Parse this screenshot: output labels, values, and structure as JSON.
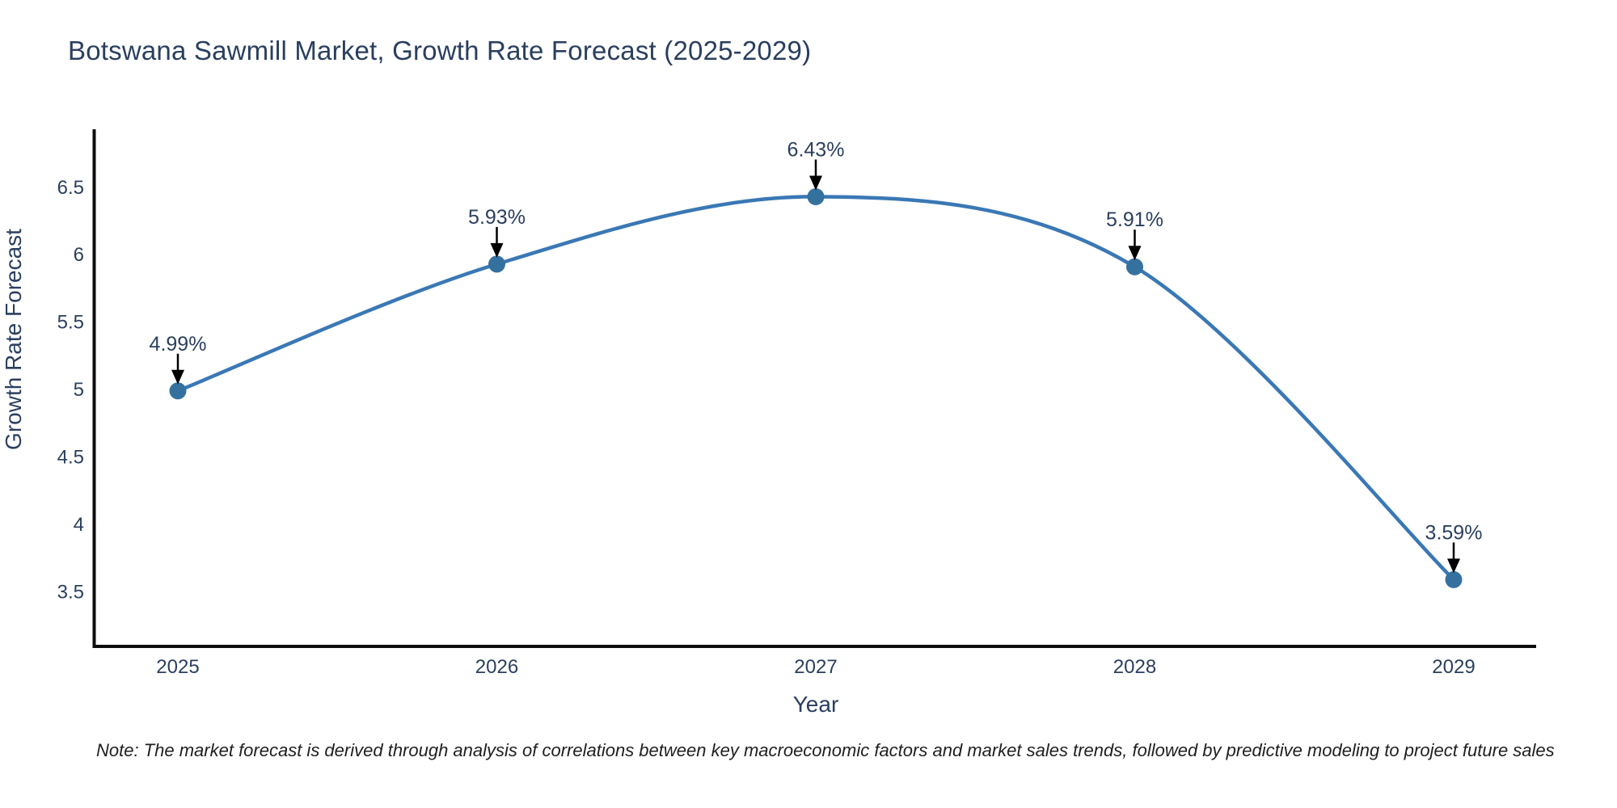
{
  "header": {
    "title": "Botswana Sawmill Market, Growth Rate Forecast (2025-2029)"
  },
  "footnote": {
    "text": "Note: The market forecast is derived through analysis of correlations between key macroeconomic factors and market sales trends, followed by predictive modeling to project future sales"
  },
  "chart_data": {
    "type": "line",
    "title": "Botswana Sawmill Market, Growth Rate Forecast (2025-2029)",
    "categories": [
      "2025",
      "2026",
      "2027",
      "2028",
      "2029"
    ],
    "series": [
      {
        "name": "Growth Rate Forecast",
        "values": [
          4.99,
          5.93,
          6.43,
          5.91,
          3.59
        ]
      }
    ],
    "point_labels": [
      "4.99%",
      "5.93%",
      "6.43%",
      "5.91%",
      "3.59%"
    ],
    "xlabel": "Year",
    "ylabel": "Growth Rate Forecast",
    "y_ticks": [
      "6.5",
      "6",
      "5.5",
      "5",
      "4.5",
      "4",
      "3.5"
    ],
    "y_tick_values": [
      6.5,
      6,
      5.5,
      5,
      4.5,
      4,
      3.5
    ],
    "ylim": [
      3.095,
      6.93
    ],
    "line_shape": "spline",
    "grid": false,
    "legend": "none",
    "colors": {
      "line": "#3a78b5",
      "marker": "#35719f",
      "arrow": "#000000",
      "axis": "#0d0d0d",
      "text": "#2a3f5f"
    }
  }
}
